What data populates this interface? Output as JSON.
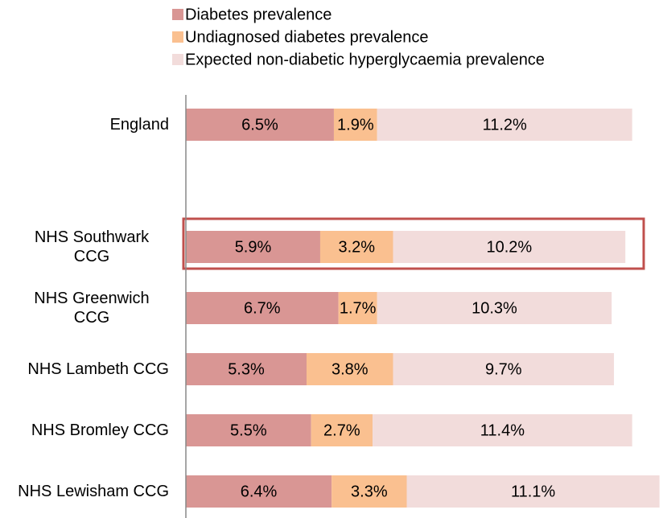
{
  "chart_data": {
    "type": "stacked-bar-horizontal",
    "categories": [
      "England",
      null,
      "NHS Southwark CCG",
      "NHS Greenwich CCG",
      "NHS Lambeth CCG",
      "NHS Bromley CCG",
      "NHS Lewisham CCG"
    ],
    "series": [
      {
        "name": "Diabetes prevalence",
        "color": "#d99694",
        "values": [
          6.5,
          null,
          5.9,
          6.7,
          5.3,
          5.5,
          6.4
        ],
        "value_labels": [
          "6.5%",
          null,
          "5.9%",
          "6.7%",
          "5.3%",
          "5.5%",
          "6.4%"
        ]
      },
      {
        "name": "Undiagnosed diabetes prevalence",
        "color": "#fac090",
        "values": [
          1.9,
          null,
          3.2,
          1.7,
          3.8,
          2.7,
          3.3
        ],
        "value_labels": [
          "1.9%",
          null,
          "3.2%",
          "1.7%",
          "3.8%",
          "2.7%",
          "3.3%"
        ]
      },
      {
        "name": "Expected non-diabetic hyperglycaemia prevalence",
        "color": "#f2dcdb",
        "values": [
          11.2,
          null,
          10.2,
          10.3,
          9.7,
          11.4,
          11.1
        ],
        "value_labels": [
          "11.2%",
          null,
          "10.2%",
          "10.3%",
          "9.7%",
          "11.4%",
          "11.1%"
        ]
      }
    ],
    "xlim": [
      0,
      21
    ]
  }
}
